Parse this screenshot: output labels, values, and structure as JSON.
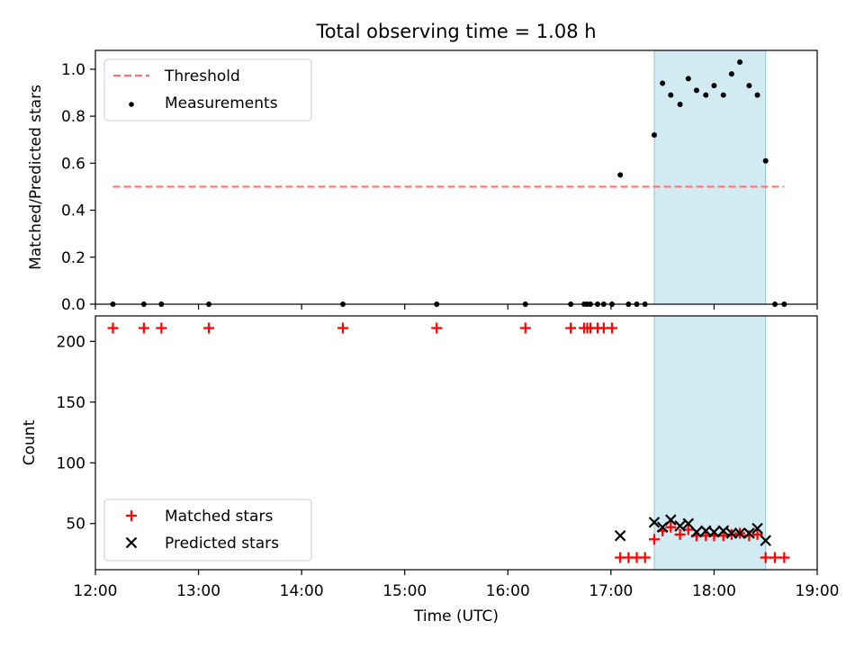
{
  "chart_data": {
    "type": "scatter",
    "title": "Total observing time = 1.08 h",
    "x_ticks": [
      "12:00",
      "13:00",
      "14:00",
      "15:00",
      "16:00",
      "17:00",
      "18:00",
      "19:00"
    ],
    "xlabel": "Time (UTC)",
    "xlim": [
      12.0,
      19.0
    ],
    "shaded_interval": [
      17.42,
      18.5
    ],
    "shade_color": "#add8e6",
    "panels": [
      {
        "id": "ratio",
        "ylabel": "Matched/Predicted stars",
        "ylim": [
          0,
          1.08
        ],
        "y_ticks": [
          "0.0",
          "0.2",
          "0.4",
          "0.6",
          "0.8",
          "1.0"
        ],
        "legend": {
          "placement": "upper left",
          "entries": [
            "Threshold",
            "Measurements"
          ]
        },
        "series": [
          {
            "name": "Threshold",
            "style": "dashed-line",
            "color": "#ff7373",
            "x": [
              12.17,
              18.68
            ],
            "y": [
              0.5,
              0.5
            ]
          },
          {
            "name": "Measurements",
            "style": "dot",
            "color": "#000000",
            "x": [
              12.17,
              12.47,
              12.64,
              13.1,
              14.4,
              15.31,
              16.17,
              16.61,
              16.74,
              16.77,
              16.8,
              16.87,
              16.93,
              17.01,
              17.09,
              17.17,
              17.25,
              17.33,
              17.42,
              17.5,
              17.58,
              17.67,
              17.75,
              17.83,
              17.92,
              18.0,
              18.09,
              18.17,
              18.25,
              18.34,
              18.42,
              18.5,
              18.59,
              18.68
            ],
            "y": [
              0,
              0,
              0,
              0,
              0,
              0,
              0,
              0,
              0,
              0,
              0,
              0,
              0,
              0,
              0.55,
              0,
              0,
              0,
              0.72,
              0.94,
              0.89,
              0.85,
              0.96,
              0.91,
              0.89,
              0.93,
              0.89,
              0.98,
              1.03,
              0.93,
              0.89,
              0.61,
              0,
              0
            ]
          }
        ]
      },
      {
        "id": "counts",
        "ylabel": "Count",
        "ylim": [
          12,
          221
        ],
        "y_ticks": [
          "50",
          "100",
          "150",
          "200"
        ],
        "legend": {
          "placement": "lower left",
          "entries": [
            "Matched stars",
            "Predicted stars"
          ]
        },
        "series": [
          {
            "name": "Matched stars",
            "style": "plus",
            "color": "#ff0000",
            "x": [
              12.17,
              12.47,
              12.64,
              13.1,
              14.4,
              15.31,
              16.17,
              16.61,
              16.74,
              16.77,
              16.8,
              16.87,
              16.93,
              17.01,
              17.09,
              17.17,
              17.25,
              17.33,
              17.42,
              17.5,
              17.58,
              17.67,
              17.75,
              17.83,
              17.92,
              18.0,
              18.09,
              18.17,
              18.25,
              18.34,
              18.42,
              18.5,
              18.59,
              18.68
            ],
            "y": [
              211,
              211,
              211,
              211,
              211,
              211,
              211,
              211,
              211,
              211,
              211,
              211,
              211,
              211,
              22,
              22,
              22,
              22,
              37,
              44,
              47,
              41,
              45,
              40,
              40,
              40,
              40,
              41,
              42,
              40,
              41,
              22,
              22,
              22
            ]
          },
          {
            "name": "Predicted stars",
            "style": "x",
            "color": "#000000",
            "x": [
              17.09,
              17.42,
              17.5,
              17.58,
              17.67,
              17.75,
              17.83,
              17.92,
              18.0,
              18.09,
              18.17,
              18.25,
              18.34,
              18.42,
              18.5
            ],
            "y": [
              40,
              51,
              47,
              53,
              48,
              50,
              43,
              44,
              43,
              44,
              42,
              42,
              42,
              46,
              36
            ]
          }
        ]
      }
    ]
  }
}
